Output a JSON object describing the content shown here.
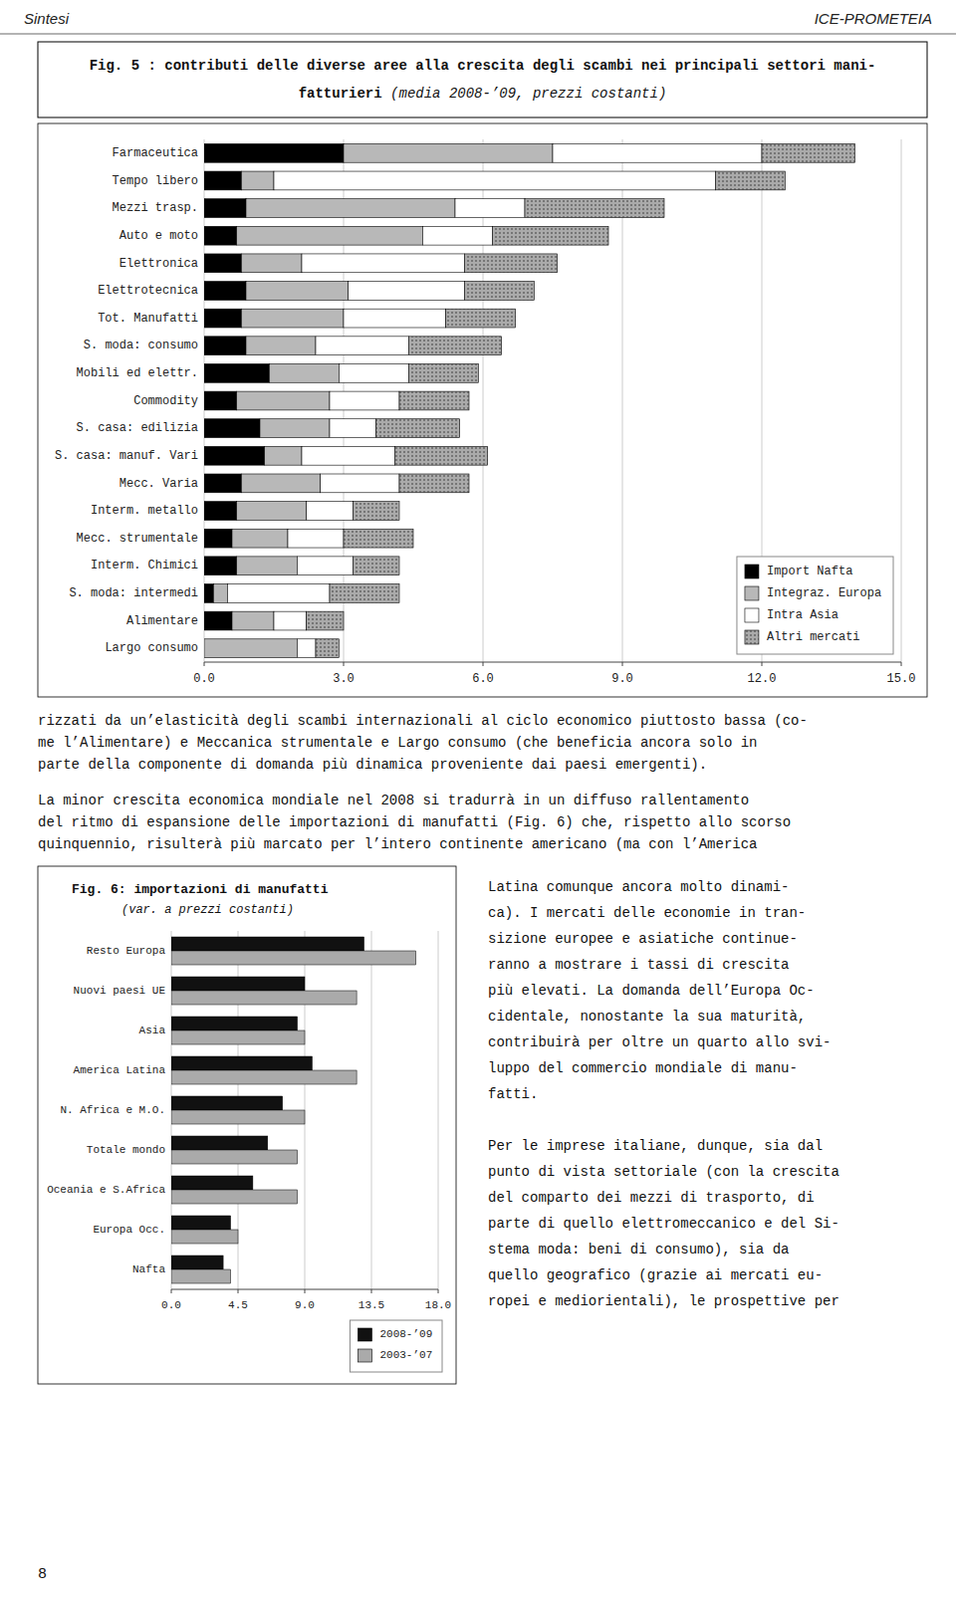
{
  "header": {
    "left": "Sintesi",
    "right": "ICE-PROMETEIA"
  },
  "chart_data": [
    {
      "type": "bar",
      "orientation": "horizontal",
      "stacked": true,
      "title": "Fig. 5 : contributi delle diverse aree alla crescita degli scambi nei principali settori mani-\nfatturieri",
      "subtitle": "(media 2008-’09, prezzi costanti)",
      "categories": [
        "Farmaceutica",
        "Tempo libero",
        "Mezzi trasp.",
        "Auto e moto",
        "Elettronica",
        "Elettrotecnica",
        "Tot. Manufatti",
        "S. moda: consumo",
        "Mobili ed elettr.",
        "Commodity",
        "S. casa: edilizia",
        "S. casa: manuf. Vari",
        "Mecc. Varia",
        "Interm. metallo",
        "Mecc. strumentale",
        "Interm. Chimici",
        "S. moda: intermedi",
        "Alimentare",
        "Largo consumo"
      ],
      "series": [
        {
          "name": "Import Nafta",
          "color": "#000000",
          "values": [
            3.0,
            0.8,
            0.9,
            0.7,
            0.8,
            0.9,
            0.8,
            0.9,
            1.4,
            0.7,
            1.2,
            1.3,
            0.8,
            0.7,
            0.6,
            0.7,
            0.2,
            0.6,
            0.0
          ]
        },
        {
          "name": "Integraz. Europa",
          "color": "#b8b8b8",
          "values": [
            4.5,
            0.7,
            4.5,
            4.0,
            1.3,
            2.2,
            2.2,
            1.5,
            1.5,
            2.0,
            1.5,
            0.8,
            1.7,
            1.5,
            1.2,
            1.3,
            0.3,
            0.9,
            2.0
          ]
        },
        {
          "name": "Intra Asia",
          "color": "#ffffff",
          "values": [
            4.5,
            9.5,
            1.5,
            1.5,
            3.5,
            2.5,
            2.2,
            2.0,
            1.5,
            1.5,
            1.0,
            2.0,
            1.7,
            1.0,
            1.2,
            1.2,
            2.2,
            0.7,
            0.4
          ]
        },
        {
          "name": "Altri mercati",
          "color": "#aaaaaa",
          "values": [
            2.0,
            1.5,
            3.0,
            2.5,
            2.0,
            1.5,
            1.5,
            2.0,
            1.5,
            1.5,
            1.8,
            2.0,
            1.5,
            1.0,
            1.5,
            1.0,
            1.5,
            0.8,
            0.5
          ]
        }
      ],
      "xlim": [
        0.0,
        15.0
      ],
      "xticks": [
        {
          "value": 0,
          "label": "0.0"
        },
        {
          "value": 3,
          "label": "3.0"
        },
        {
          "value": 6,
          "label": "6.0"
        },
        {
          "value": 9,
          "label": "9.0"
        },
        {
          "value": 12,
          "label": "12.0"
        },
        {
          "value": 15,
          "label": "15.0"
        }
      ],
      "grid": true,
      "legend": "lower right"
    },
    {
      "type": "bar",
      "orientation": "horizontal",
      "stacked": false,
      "title": "Fig. 6:   importazioni di manufatti",
      "subtitle": "(var. a prezzi costanti)",
      "categories": [
        "Resto Europa",
        "Nuovi paesi UE",
        "Asia",
        "America Latina",
        "N. Africa e M.O.",
        "Totale mondo",
        "Oceania e S.Africa",
        "Europa Occ.",
        "Nafta"
      ],
      "series": [
        {
          "name": "2008-’09",
          "color": "#111111",
          "values": [
            13.0,
            9.0,
            8.5,
            9.5,
            7.5,
            6.5,
            5.5,
            4.0,
            3.5
          ]
        },
        {
          "name": "2003-’07",
          "color": "#aaaaaa",
          "values": [
            16.5,
            12.5,
            9.0,
            12.5,
            9.0,
            8.5,
            8.5,
            4.5,
            4.0
          ]
        }
      ],
      "xlim": [
        0.0,
        18.0
      ],
      "xticks": [
        {
          "value": 0,
          "label": "0.0"
        },
        4.5,
        {
          "value": 9,
          "label": "9.0"
        },
        13.5,
        {
          "value": 18,
          "label": "18.0"
        }
      ],
      "grid": true,
      "legend": "lower right"
    }
  ],
  "paragraphs": [
    "rizzati da un’elasticità degli scambi internazionali al ciclo economico piuttosto bassa (co-\nme l’Alimentare) e Meccanica strumentale e Largo consumo (che beneficia ancora solo in\nparte della componente di domanda più dinamica proveniente dai paesi emergenti).",
    "La minor crescita economica mondiale nel 2008 si tradurrà in un diffuso rallentamento\ndel ritmo di espansione delle importazioni di manufatti (Fig. 6) che, rispetto allo scorso\nquinquennio, risulterà più marcato per l’intero continente americano (ma con l’America",
    "Latina comunque ancora molto dinami-\nca). I mercati delle economie in tran-\nsizione europee e asiatiche continue-\nranno a mostrare i tassi di crescita\npiù elevati. La domanda dell’Europa Oc-\ncidentale, nonostante la sua maturità,\ncontribuirà per oltre un quarto allo svi-\nluppo del commercio mondiale di manu-\nfatti.",
    "Per le imprese italiane, dunque, sia dal\npunto di vista settoriale (con la crescita\ndel comparto dei mezzi di trasporto, di\nparte di quello elettromeccanico e del Si-\nstema moda: beni di consumo), sia da\nquello geografico (grazie ai mercati eu-\nropei e mediorientali), le prospettive per"
  ],
  "page_number": "8"
}
